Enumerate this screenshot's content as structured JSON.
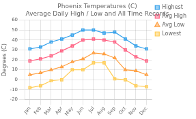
{
  "chart_data": {
    "type": "line",
    "title": "Phoenix Temperatures (C)\nAverage Daily High / Low and All Time Records",
    "y_label": "Degrees (C)",
    "categories": [
      "Jan",
      "Feb",
      "Mar",
      "Apr",
      "May",
      "Jun",
      "Jul",
      "Aug",
      "Sep",
      "Oct",
      "Nov",
      "Dec"
    ],
    "series": [
      {
        "name": "Highest",
        "marker": "square",
        "values": [
          31,
          33,
          38,
          41,
          45,
          50,
          50,
          47,
          48,
          41,
          34,
          31
        ]
      },
      {
        "name": "Avg High",
        "marker": "square",
        "values": [
          19,
          21,
          24,
          29,
          34,
          40,
          41,
          40,
          38,
          30,
          23,
          19
        ]
      },
      {
        "name": "Avg Low",
        "marker": "triangle",
        "values": [
          5,
          7,
          10,
          13,
          18,
          21,
          27,
          26,
          22,
          10,
          9,
          5
        ]
      },
      {
        "name": "Lowest",
        "marker": "square",
        "values": [
          -8,
          -6,
          -1,
          0,
          10,
          10,
          17,
          17,
          1,
          0,
          -6,
          -7
        ]
      }
    ],
    "ylim": [
      -20,
      60
    ],
    "yticks": [
      -20,
      -10,
      0,
      10,
      20,
      30,
      40,
      50,
      60
    ],
    "grid": true,
    "legend": "upper right"
  }
}
